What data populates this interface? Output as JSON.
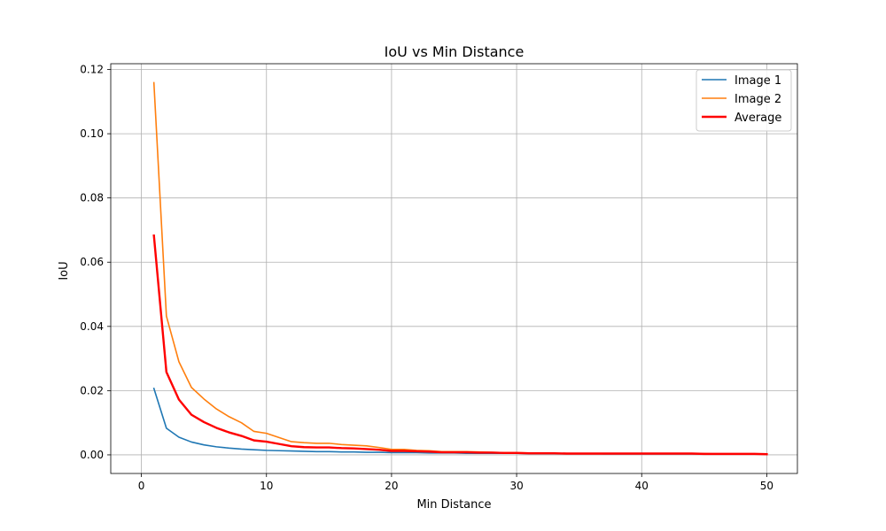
{
  "chart_data": {
    "type": "line",
    "title": "IoU vs Min Distance",
    "xlabel": "Min Distance",
    "ylabel": "IoU",
    "xlim": [
      -2.45,
      52.45
    ],
    "ylim": [
      -0.0058,
      0.1218
    ],
    "xticks": [
      0,
      10,
      20,
      30,
      40,
      50
    ],
    "xtick_labels": [
      "0",
      "10",
      "20",
      "30",
      "40",
      "50"
    ],
    "yticks": [
      0,
      0.02,
      0.04,
      0.06,
      0.08,
      0.1,
      0.12
    ],
    "ytick_labels": [
      "0.00",
      "0.02",
      "0.04",
      "0.06",
      "0.08",
      "0.10",
      "0.12"
    ],
    "grid": true,
    "legend_position": "top-right",
    "series": [
      {
        "name": "Image 1",
        "color": "#1f77b4",
        "x": [
          1,
          2,
          3,
          4,
          5,
          6,
          7,
          8,
          9,
          10,
          11,
          12,
          13,
          14,
          15,
          16,
          17,
          18,
          19,
          20,
          21,
          22,
          23,
          24,
          25,
          26,
          27,
          28,
          29,
          30,
          31,
          32,
          33,
          34,
          35,
          36,
          37,
          38,
          39,
          40,
          41,
          42,
          43,
          44,
          45,
          46,
          47,
          48,
          49,
          50
        ],
        "values": [
          0.0207,
          0.0083,
          0.0055,
          0.004,
          0.0031,
          0.0025,
          0.0021,
          0.0018,
          0.0016,
          0.0014,
          0.0013,
          0.0012,
          0.0011,
          0.001,
          0.001,
          0.0009,
          0.0009,
          0.0008,
          0.0008,
          0.0007,
          0.0007,
          0.0007,
          0.0006,
          0.0006,
          0.0006,
          0.0005,
          0.0005,
          0.0005,
          0.0005,
          0.0005,
          0.0004,
          0.0004,
          0.0004,
          0.0004,
          0.0004,
          0.0004,
          0.0003,
          0.0003,
          0.0003,
          0.0003,
          0.0003,
          0.0003,
          0.0003,
          0.0003,
          0.0003,
          0.0002,
          0.0002,
          0.0002,
          0.0002,
          0.0002
        ]
      },
      {
        "name": "Image 2",
        "color": "#ff7f0e",
        "x": [
          1,
          2,
          3,
          4,
          5,
          6,
          7,
          8,
          9,
          10,
          11,
          12,
          13,
          14,
          15,
          16,
          17,
          18,
          19,
          20,
          21,
          22,
          23,
          24,
          25,
          26,
          27,
          28,
          29,
          30,
          31,
          32,
          33,
          34,
          35,
          36,
          37,
          38,
          39,
          40,
          41,
          42,
          43,
          44,
          45,
          46,
          47,
          48,
          49,
          50
        ],
        "values": [
          0.1159,
          0.0432,
          0.029,
          0.021,
          0.0174,
          0.0143,
          0.0119,
          0.01,
          0.0073,
          0.0067,
          0.0054,
          0.0041,
          0.0038,
          0.0036,
          0.0036,
          0.0032,
          0.003,
          0.0028,
          0.0023,
          0.0017,
          0.0017,
          0.0014,
          0.0013,
          0.001,
          0.001,
          0.001,
          0.0009,
          0.0008,
          0.0007,
          0.0007,
          0.0006,
          0.0005,
          0.0005,
          0.0004,
          0.0004,
          0.0004,
          0.0004,
          0.0004,
          0.0004,
          0.0004,
          0.0004,
          0.0004,
          0.0004,
          0.0004,
          0.0004,
          0.0003,
          0.0003,
          0.0003,
          0.0003,
          0.0003
        ]
      },
      {
        "name": "Average",
        "color": "#ff0000",
        "bold": true,
        "x": [
          1,
          2,
          3,
          4,
          5,
          6,
          7,
          8,
          9,
          10,
          11,
          12,
          13,
          14,
          15,
          16,
          17,
          18,
          19,
          20,
          21,
          22,
          23,
          24,
          25,
          26,
          27,
          28,
          29,
          30,
          31,
          32,
          33,
          34,
          35,
          36,
          37,
          38,
          39,
          40,
          41,
          42,
          43,
          44,
          45,
          46,
          47,
          48,
          49,
          50
        ],
        "values": [
          0.0683,
          0.0258,
          0.0172,
          0.0125,
          0.0102,
          0.0084,
          0.007,
          0.0059,
          0.0045,
          0.0041,
          0.0034,
          0.0027,
          0.0024,
          0.0023,
          0.0023,
          0.0021,
          0.002,
          0.0018,
          0.0016,
          0.0012,
          0.0012,
          0.0011,
          0.001,
          0.0008,
          0.0008,
          0.0008,
          0.0007,
          0.0007,
          0.0006,
          0.0006,
          0.0005,
          0.0005,
          0.0005,
          0.0004,
          0.0004,
          0.0004,
          0.0004,
          0.0004,
          0.0004,
          0.0004,
          0.0004,
          0.0004,
          0.0004,
          0.0004,
          0.0003,
          0.0003,
          0.0003,
          0.0003,
          0.0003,
          0.0002
        ]
      }
    ]
  }
}
